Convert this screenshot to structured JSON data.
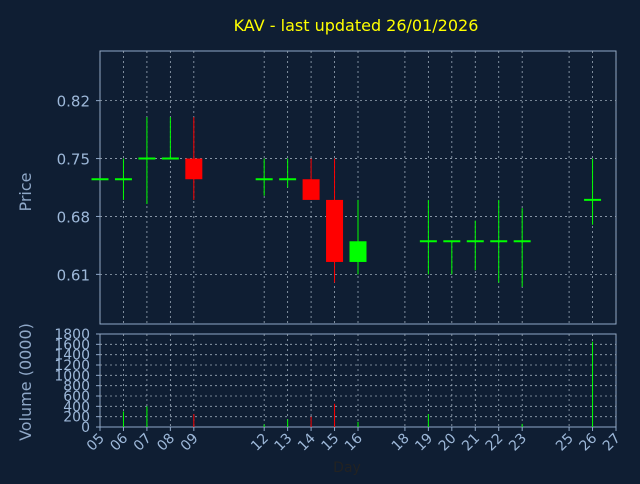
{
  "chart_data": {
    "type": "candlestick",
    "title": "KAV - last updated 26/01/2026",
    "xlabel": "Day",
    "ylabel_price": "Price",
    "ylabel_volume": "Volume (0000)",
    "x_ticks": [
      "05",
      "06",
      "07",
      "08",
      "09",
      "12",
      "13",
      "14",
      "15",
      "16",
      "18",
      "19",
      "20",
      "21",
      "22",
      "23",
      "25",
      "26",
      "27"
    ],
    "price_ticks": [
      "0.82",
      "0.75",
      "0.68",
      "0.61"
    ],
    "price_tick_values": [
      0.82,
      0.75,
      0.68,
      0.61
    ],
    "price_ylim": [
      0.55,
      0.88
    ],
    "volume_ticks": [
      "1800",
      "1600",
      "1400",
      "1200",
      "1000",
      "800",
      "600",
      "400",
      "200",
      "0"
    ],
    "volume_tick_values": [
      1800,
      1600,
      1400,
      1200,
      1000,
      800,
      600,
      400,
      200,
      0
    ],
    "volume_ylim": [
      0,
      1800
    ],
    "grid": true,
    "colors": {
      "background": "#0f1e33",
      "axis": "#8fa8c8",
      "tick_label": "#9db8d9",
      "title": "#ffff00",
      "up": "#00ff00",
      "down": "#ff0000",
      "grid": "#9aa8b8"
    },
    "candles": [
      {
        "day": 5,
        "open": 0.725,
        "high": 0.725,
        "low": 0.725,
        "close": 0.725,
        "volume": 0
      },
      {
        "day": 6,
        "open": 0.725,
        "high": 0.75,
        "low": 0.7,
        "close": 0.725,
        "volume": 300
      },
      {
        "day": 7,
        "open": 0.75,
        "high": 0.8,
        "low": 0.695,
        "close": 0.75,
        "volume": 400
      },
      {
        "day": 8,
        "open": 0.75,
        "high": 0.8,
        "low": 0.75,
        "close": 0.75,
        "volume": 0
      },
      {
        "day": 9,
        "open": 0.75,
        "high": 0.8,
        "low": 0.7,
        "close": 0.725,
        "volume": 250
      },
      {
        "day": 12,
        "open": 0.725,
        "high": 0.75,
        "low": 0.705,
        "close": 0.725,
        "volume": 50
      },
      {
        "day": 13,
        "open": 0.725,
        "high": 0.75,
        "low": 0.715,
        "close": 0.725,
        "volume": 150
      },
      {
        "day": 14,
        "open": 0.725,
        "high": 0.75,
        "low": 0.7,
        "close": 0.7,
        "volume": 200
      },
      {
        "day": 15,
        "open": 0.7,
        "high": 0.75,
        "low": 0.6,
        "close": 0.625,
        "volume": 450
      },
      {
        "day": 16,
        "open": 0.625,
        "high": 0.7,
        "low": 0.61,
        "close": 0.65,
        "volume": 100
      },
      {
        "day": 19,
        "open": 0.65,
        "high": 0.7,
        "low": 0.61,
        "close": 0.65,
        "volume": 250
      },
      {
        "day": 20,
        "open": 0.65,
        "high": 0.65,
        "low": 0.61,
        "close": 0.65,
        "volume": 0
      },
      {
        "day": 21,
        "open": 0.65,
        "high": 0.675,
        "low": 0.615,
        "close": 0.65,
        "volume": 0
      },
      {
        "day": 22,
        "open": 0.65,
        "high": 0.7,
        "low": 0.6,
        "close": 0.65,
        "volume": 0
      },
      {
        "day": 23,
        "open": 0.65,
        "high": 0.69,
        "low": 0.595,
        "close": 0.65,
        "volume": 60
      },
      {
        "day": 26,
        "open": 0.7,
        "high": 0.75,
        "low": 0.67,
        "close": 0.7,
        "volume": 1650
      }
    ]
  }
}
